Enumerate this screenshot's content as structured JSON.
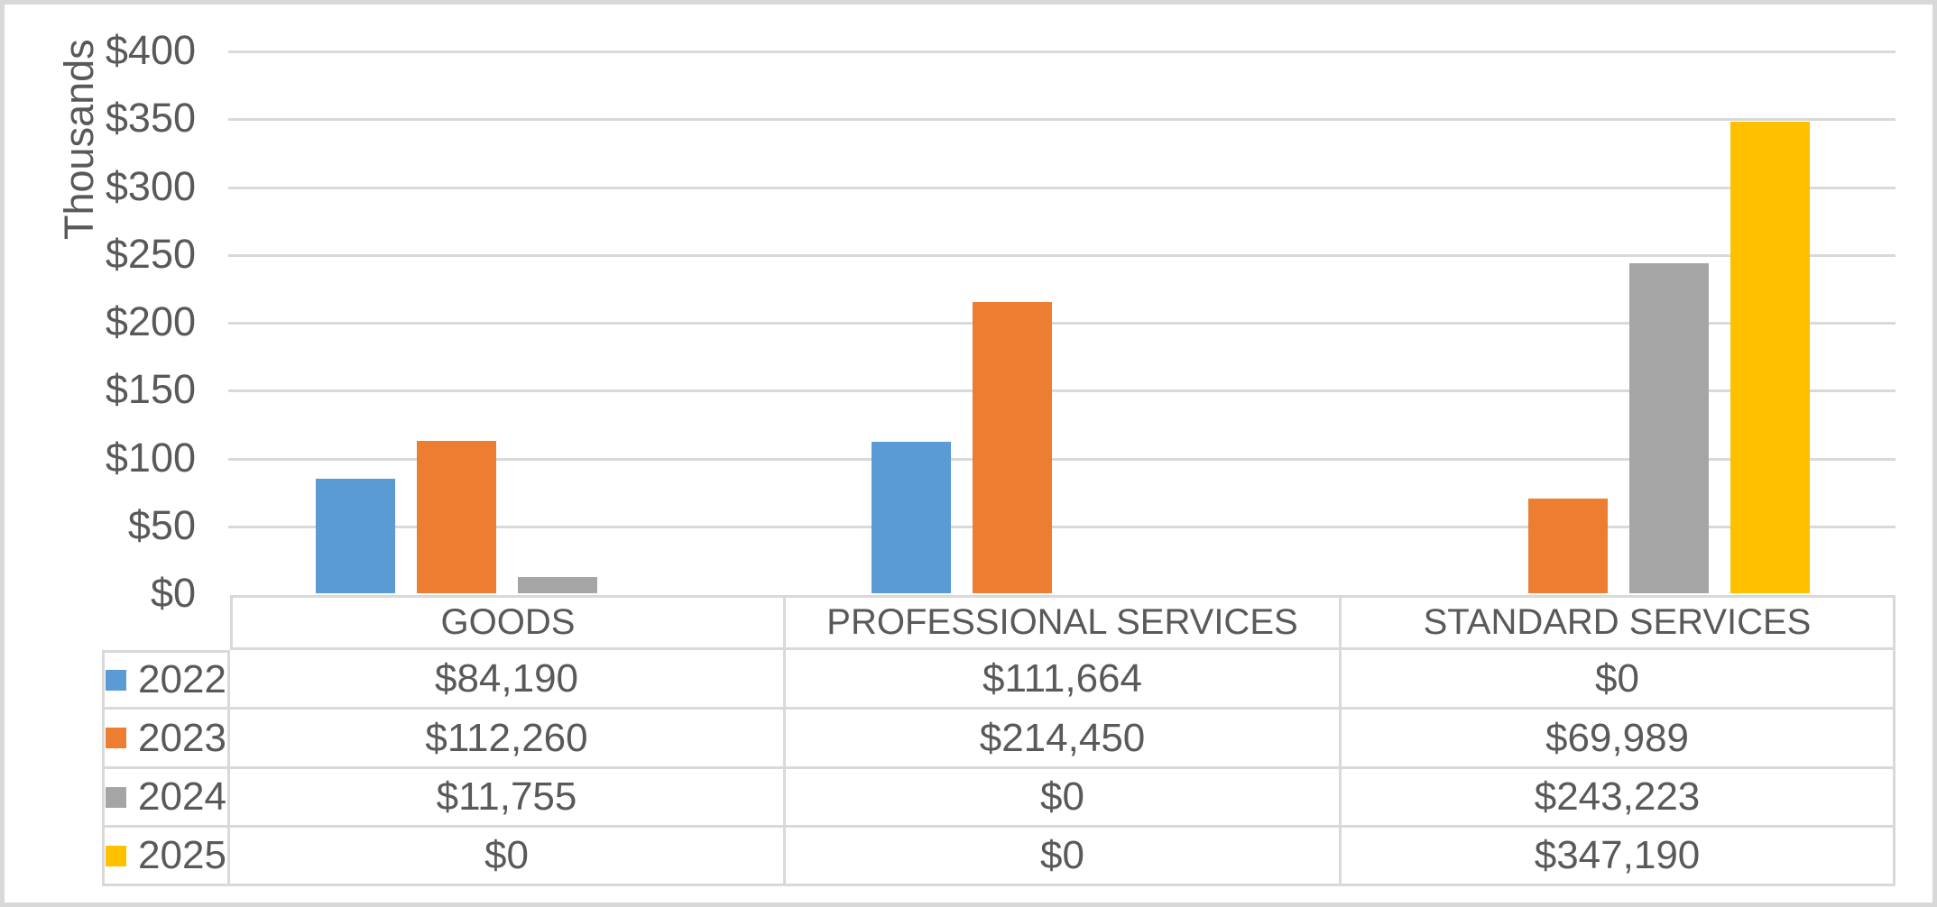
{
  "chart_data": {
    "type": "bar",
    "title": "",
    "categories": [
      "GOODS",
      "PROFESSIONAL SERVICES",
      "STANDARD SERVICES"
    ],
    "series": [
      {
        "name": "2022",
        "color": "#5B9BD5",
        "values": [
          84190,
          111664,
          0
        ]
      },
      {
        "name": "2023",
        "color": "#ED7D31",
        "values": [
          112260,
          214450,
          69989
        ]
      },
      {
        "name": "2024",
        "color": "#A5A5A5",
        "values": [
          11755,
          0,
          243223
        ]
      },
      {
        "name": "2025",
        "color": "#FFC000",
        "values": [
          0,
          0,
          347190
        ]
      }
    ],
    "xlabel": "",
    "ylabel": "Thousands",
    "ylim": [
      0,
      400000
    ],
    "y_tick_labels": [
      "$400",
      "$350",
      "$300",
      "$250",
      "$200",
      "$150",
      "$100",
      "$50",
      "$0"
    ],
    "grid": true,
    "legend_position": "data-table-left-column"
  },
  "data_table": {
    "column_headers": [
      "GOODS",
      "PROFESSIONAL SERVICES",
      "STANDARD SERVICES"
    ],
    "rows": [
      {
        "label": "2022",
        "key_color": "#5B9BD5",
        "cells": [
          "$84,190",
          "$111,664",
          "$0"
        ]
      },
      {
        "label": "2023",
        "key_color": "#ED7D31",
        "cells": [
          "$112,260",
          "$214,450",
          "$69,989"
        ]
      },
      {
        "label": "2024",
        "key_color": "#A5A5A5",
        "cells": [
          "$11,755",
          "$0",
          "$243,223"
        ]
      },
      {
        "label": "2025",
        "key_color": "#FFC000",
        "cells": [
          "$0",
          "$0",
          "$347,190"
        ]
      }
    ]
  },
  "colors": {
    "text": "#595959",
    "gridline": "#D9D9D9",
    "table_border": "#D9D9D9",
    "frame_border": "#D8D8D8",
    "background": "#FFFFFF"
  }
}
